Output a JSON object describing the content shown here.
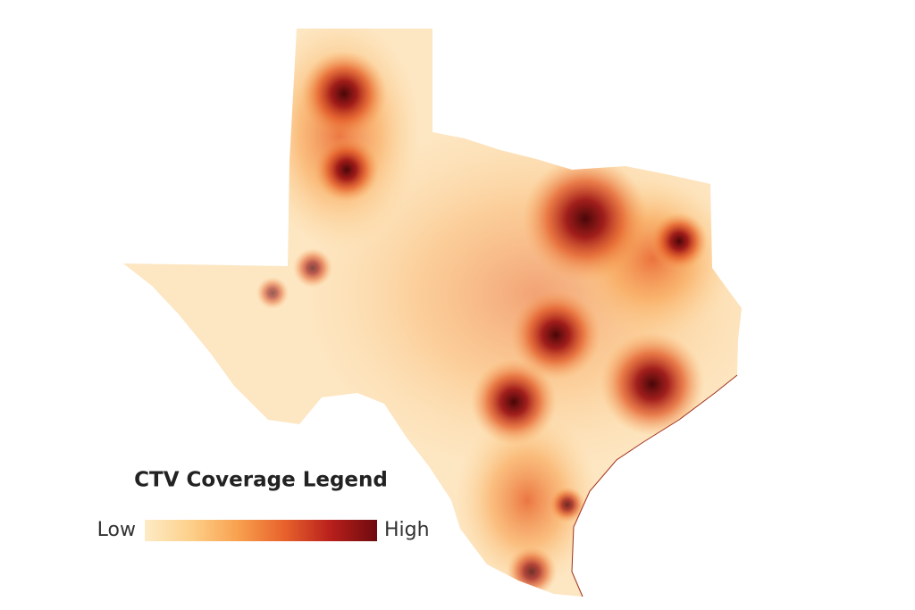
{
  "legend": {
    "title": "CTV Coverage Legend",
    "low_label": "Low",
    "high_label": "High",
    "colors": [
      "#fdebc6",
      "#fdd08a",
      "#f8a14f",
      "#e8622c",
      "#b8201c",
      "#6e0a0e"
    ]
  }
}
